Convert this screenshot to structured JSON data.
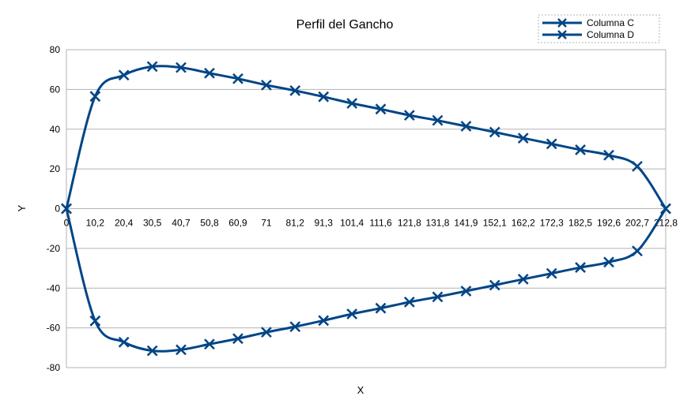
{
  "chart_data": {
    "type": "line",
    "title": "Perfil del Gancho",
    "xlabel": "X",
    "ylabel": "Y",
    "xlim": [
      0,
      212.8
    ],
    "ylim": [
      -80,
      80
    ],
    "y_ticks": [
      -80,
      -60,
      -40,
      -20,
      0,
      20,
      40,
      60,
      80
    ],
    "x_tick_labels": [
      "0",
      "10,2",
      "20,4",
      "30,5",
      "40,7",
      "50,8",
      "60,9",
      "71",
      "81,2",
      "91,3",
      "101,4",
      "111,6",
      "121,8",
      "131,8",
      "141,9",
      "152,1",
      "162,2",
      "172,3",
      "182,5",
      "192,6",
      "202,7",
      "212,8"
    ],
    "grid": "horizontal",
    "legend_position": "top-right",
    "smooth": true,
    "marker": "x",
    "series": [
      {
        "name": "Columna C",
        "color": "#004586",
        "x": [
          0,
          10.2,
          20.4,
          30.5,
          40.7,
          50.8,
          60.9,
          71,
          81.2,
          91.3,
          101.4,
          111.6,
          121.8,
          131.8,
          141.9,
          152.1,
          162.2,
          172.3,
          182.5,
          192.6,
          202.7,
          212.8
        ],
        "y": [
          0,
          56.5,
          67.2,
          71.5,
          71,
          68.2,
          65.4,
          62.2,
          59.4,
          56.3,
          53,
          50.1,
          47,
          44.4,
          41.5,
          38.5,
          35.5,
          32.6,
          29.6,
          26.9,
          21.3,
          0
        ]
      },
      {
        "name": "Columna D",
        "color": "#004586",
        "x": [
          0,
          10.2,
          20.4,
          30.5,
          40.7,
          50.8,
          60.9,
          71,
          81.2,
          91.3,
          101.4,
          111.6,
          121.8,
          131.8,
          141.9,
          152.1,
          162.2,
          172.3,
          182.5,
          192.6,
          202.7,
          212.8
        ],
        "y": [
          0,
          -56.5,
          -67.2,
          -71.5,
          -71,
          -68.2,
          -65.4,
          -62.2,
          -59.4,
          -56.3,
          -53,
          -50.1,
          -47,
          -44.4,
          -41.5,
          -38.5,
          -35.5,
          -32.6,
          -29.6,
          -26.9,
          -21.3,
          0
        ]
      }
    ]
  }
}
